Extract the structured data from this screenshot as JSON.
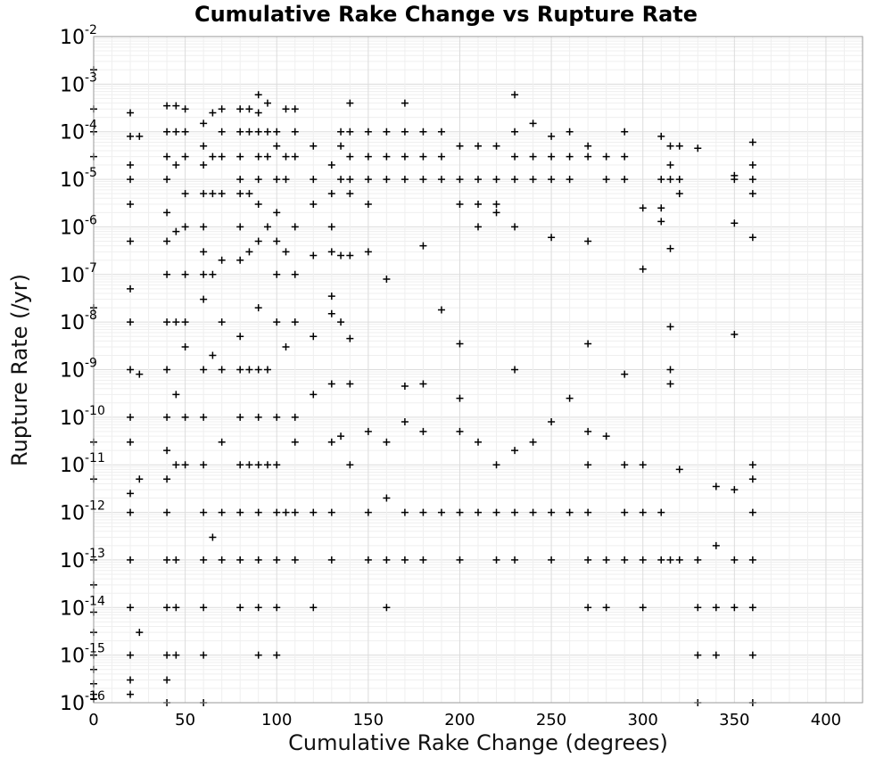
{
  "chart_data": {
    "type": "scatter",
    "title": "Cumulative Rake Change vs Rupture Rate",
    "xlabel": "Cumulative Rake Change (degrees)",
    "ylabel": "Rupture Rate (/yr)",
    "xlim": [
      0,
      420
    ],
    "ylim": [
      1e-16,
      0.01
    ],
    "yscale": "log",
    "grid": true,
    "marker": "+",
    "marker_color": "#000000",
    "xticks": [
      0,
      50,
      100,
      150,
      200,
      250,
      300,
      350,
      400
    ],
    "yticks": [
      {
        "base": "10",
        "exp": "-16"
      },
      {
        "base": "10",
        "exp": "-15"
      },
      {
        "base": "10",
        "exp": "-14"
      },
      {
        "base": "10",
        "exp": "-13"
      },
      {
        "base": "10",
        "exp": "-12"
      },
      {
        "base": "10",
        "exp": "-11"
      },
      {
        "base": "10",
        "exp": "-10"
      },
      {
        "base": "10",
        "exp": "-9"
      },
      {
        "base": "10",
        "exp": "-8"
      },
      {
        "base": "10",
        "exp": "-7"
      },
      {
        "base": "10",
        "exp": "-6"
      },
      {
        "base": "10",
        "exp": "-5"
      },
      {
        "base": "10",
        "exp": "-4"
      },
      {
        "base": "10",
        "exp": "-3"
      },
      {
        "base": "10",
        "exp": "-2"
      }
    ],
    "series": [
      {
        "x": [
          0,
          0,
          0,
          0,
          0,
          0,
          0,
          0,
          0,
          0,
          0,
          0,
          0,
          0,
          0,
          0,
          20,
          20,
          20,
          20,
          20,
          20,
          20,
          20,
          20,
          20,
          20,
          20,
          20,
          20,
          20,
          20,
          20,
          20,
          25,
          25,
          25,
          25,
          40,
          40,
          40,
          40,
          40,
          40,
          40,
          40,
          40,
          40,
          40,
          40,
          40,
          40,
          40,
          40,
          40,
          40,
          45,
          45,
          45,
          45,
          45,
          45,
          45,
          45,
          45,
          45,
          50,
          50,
          50,
          50,
          50,
          50,
          50,
          50,
          50,
          50,
          60,
          60,
          60,
          60,
          60,
          60,
          60,
          60,
          60,
          60,
          60,
          60,
          60,
          60,
          60,
          60,
          65,
          65,
          65,
          65,
          65,
          65,
          70,
          70,
          70,
          70,
          70,
          70,
          70,
          70,
          70,
          70,
          80,
          80,
          80,
          80,
          80,
          80,
          80,
          80,
          80,
          80,
          80,
          80,
          80,
          80,
          85,
          85,
          85,
          85,
          85,
          85,
          90,
          90,
          90,
          90,
          90,
          90,
          90,
          90,
          90,
          90,
          90,
          90,
          90,
          90,
          90,
          95,
          95,
          95,
          95,
          95,
          95,
          100,
          100,
          100,
          100,
          100,
          100,
          100,
          100,
          100,
          100,
          100,
          100,
          100,
          105,
          105,
          105,
          105,
          105,
          105,
          110,
          110,
          110,
          110,
          110,
          110,
          110,
          110,
          110,
          110,
          120,
          120,
          120,
          120,
          120,
          120,
          120,
          120,
          130,
          130,
          130,
          130,
          130,
          130,
          130,
          130,
          130,
          130,
          135,
          135,
          135,
          135,
          135,
          135,
          140,
          140,
          140,
          140,
          140,
          140,
          140,
          140,
          140,
          150,
          150,
          150,
          150,
          150,
          150,
          150,
          150,
          160,
          160,
          160,
          160,
          160,
          160,
          160,
          160,
          170,
          170,
          170,
          170,
          170,
          170,
          170,
          170,
          180,
          180,
          180,
          180,
          180,
          180,
          180,
          180,
          190,
          190,
          190,
          190,
          190,
          200,
          200,
          200,
          200,
          200,
          200,
          200,
          200,
          210,
          210,
          210,
          210,
          210,
          210,
          220,
          220,
          220,
          220,
          220,
          220,
          220,
          230,
          230,
          230,
          230,
          230,
          230,
          230,
          230,
          230,
          240,
          240,
          240,
          240,
          240,
          250,
          250,
          250,
          250,
          250,
          250,
          250,
          260,
          260,
          260,
          260,
          260,
          270,
          270,
          270,
          270,
          270,
          270,
          270,
          270,
          270,
          280,
          280,
          280,
          280,
          280,
          290,
          290,
          290,
          290,
          290,
          290,
          290,
          300,
          300,
          300,
          300,
          300,
          300,
          310,
          310,
          310,
          310,
          310,
          310,
          315,
          315,
          315,
          315,
          315,
          315,
          315,
          315,
          320,
          320,
          320,
          320,
          320,
          330,
          330,
          330,
          330,
          330,
          340,
          340,
          340,
          340,
          350,
          350,
          350,
          350,
          350,
          350,
          350,
          360,
          360,
          360,
          360,
          360,
          360,
          360,
          360,
          360,
          360,
          360,
          360
        ],
        "y": [
          0.002,
          0.0003,
          0.0001,
          3e-05,
          2e-08,
          3e-11,
          5e-12,
          1e-13,
          3e-14,
          8e-15,
          3e-15,
          1e-15,
          5e-16,
          2.5e-16,
          1.5e-16,
          1.2e-16,
          0.00025,
          8e-05,
          2e-05,
          1e-05,
          3e-06,
          5e-07,
          5e-08,
          1e-08,
          1e-09,
          1e-10,
          3e-11,
          1e-12,
          1e-13,
          1e-14,
          1e-15,
          3e-16,
          1.5e-16,
          2.5e-12,
          8e-05,
          8e-10,
          5e-12,
          3e-15,
          0.00035,
          0.0001,
          3e-05,
          1e-05,
          2e-06,
          5e-07,
          1e-07,
          1e-08,
          1e-09,
          1e-10,
          2e-11,
          5e-12,
          1e-12,
          1e-13,
          1e-14,
          1e-15,
          1e-16,
          3e-16,
          0.00035,
          0.0001,
          2e-05,
          8e-07,
          1e-08,
          3e-10,
          1e-11,
          1e-13,
          1e-14,
          1e-15,
          0.0003,
          0.0001,
          3e-05,
          5e-06,
          1e-06,
          1e-07,
          1e-08,
          3e-09,
          1e-10,
          1e-11,
          0.00015,
          5e-05,
          2e-05,
          5e-06,
          1e-06,
          3e-07,
          1e-07,
          3e-08,
          1e-09,
          1e-10,
          1e-11,
          1e-12,
          1e-13,
          1e-14,
          1e-15,
          1e-16,
          0.00025,
          3e-05,
          5e-06,
          1e-07,
          2e-09,
          3e-13,
          0.0003,
          0.0001,
          3e-05,
          5e-06,
          2e-07,
          1e-08,
          1e-09,
          3e-11,
          1e-12,
          1e-13,
          0.0003,
          0.0001,
          3e-05,
          1e-05,
          5e-06,
          1e-06,
          2e-07,
          5e-09,
          1e-09,
          1e-10,
          1e-11,
          1e-12,
          1e-13,
          1e-14,
          0.0003,
          0.0001,
          5e-06,
          3e-07,
          1e-09,
          1e-11,
          0.0006,
          0.00025,
          0.0001,
          3e-05,
          1e-05,
          3e-06,
          5e-07,
          2e-08,
          1e-09,
          1e-10,
          1e-11,
          1e-12,
          1e-13,
          1e-14,
          1e-15,
          0.0004,
          0.0001,
          3e-05,
          1e-06,
          1e-09,
          1e-11,
          0.0001,
          5e-05,
          1e-05,
          2e-06,
          5e-07,
          1e-07,
          1e-08,
          1e-10,
          1e-11,
          1e-12,
          1e-13,
          1e-14,
          1e-15,
          0.0003,
          3e-05,
          1e-05,
          3e-07,
          3e-09,
          1e-12,
          0.0003,
          0.0001,
          3e-05,
          1e-06,
          1e-07,
          1e-08,
          1e-10,
          3e-11,
          1e-12,
          1e-13,
          5e-05,
          1e-05,
          3e-06,
          2.5e-07,
          5e-09,
          3e-10,
          1e-12,
          1e-14,
          2e-05,
          5e-06,
          1e-06,
          3e-07,
          3.5e-08,
          1.5e-08,
          5e-10,
          3e-11,
          1e-12,
          1e-13,
          0.0001,
          5e-05,
          1e-05,
          2.5e-07,
          1e-08,
          4e-11,
          0.0004,
          0.0001,
          3e-05,
          1e-05,
          5e-06,
          2.5e-07,
          4.5e-09,
          5e-10,
          1e-11,
          0.0001,
          3e-05,
          1e-05,
          3e-06,
          3e-07,
          5e-11,
          1e-12,
          1e-13,
          0.0001,
          3e-05,
          1e-05,
          8e-08,
          3e-11,
          2e-12,
          1e-13,
          1e-14,
          0.0004,
          0.0001,
          3e-05,
          1e-05,
          4.5e-10,
          8e-11,
          1e-12,
          1e-13,
          0.0001,
          3e-05,
          1e-05,
          4e-07,
          5e-10,
          5e-11,
          1e-12,
          1e-13,
          0.0001,
          3e-05,
          1e-05,
          1.8e-08,
          1e-12,
          5e-05,
          1e-05,
          3e-06,
          3.5e-09,
          2.5e-10,
          5e-11,
          1e-12,
          1e-13,
          5e-05,
          1e-05,
          3e-06,
          1e-06,
          3e-11,
          1e-12,
          5e-05,
          1e-05,
          3e-06,
          2e-06,
          1e-11,
          1e-12,
          1e-13,
          0.0006,
          0.0001,
          3e-05,
          1e-05,
          1e-06,
          1e-09,
          2e-11,
          1e-12,
          1e-13,
          0.00015,
          3e-05,
          1e-05,
          3e-11,
          1e-12,
          8e-05,
          3e-05,
          1e-05,
          6e-07,
          8e-11,
          1e-12,
          1e-13,
          0.0001,
          3e-05,
          1e-05,
          2.5e-10,
          1e-12,
          5e-05,
          3e-05,
          5e-07,
          3.5e-09,
          5e-11,
          1e-11,
          1e-12,
          1e-13,
          1e-14,
          3e-05,
          1e-05,
          4e-11,
          1e-13,
          1e-14,
          0.0001,
          3e-05,
          1e-05,
          8e-10,
          1e-11,
          1e-12,
          1e-13,
          2.5e-06,
          1.3e-07,
          1e-11,
          1e-12,
          1e-13,
          1e-14,
          8e-05,
          1e-05,
          2.5e-06,
          1.3e-06,
          1e-12,
          1e-13,
          5e-05,
          2e-05,
          1e-05,
          3.5e-07,
          8e-09,
          1e-09,
          5e-10,
          1e-13,
          5e-05,
          1e-05,
          5e-06,
          8e-12,
          1e-13,
          4.5e-05,
          1e-13,
          1e-14,
          1e-15,
          1e-16,
          3.5e-12,
          2e-13,
          1e-14,
          1e-15,
          1e-05,
          1.2e-05,
          1.2e-06,
          5.5e-09,
          3e-12,
          1e-13,
          1e-14,
          6e-05,
          2e-05,
          1e-05,
          5e-06,
          6e-07,
          1e-11,
          5e-12,
          1e-12,
          1e-13,
          1e-14,
          1e-15,
          1e-16
        ]
      }
    ]
  }
}
